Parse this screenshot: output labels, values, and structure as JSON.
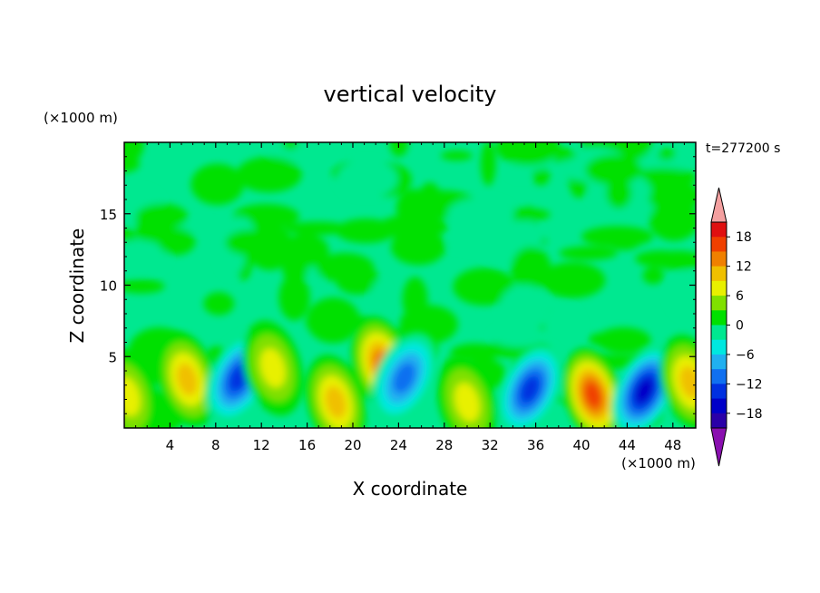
{
  "chart_data": {
    "type": "heatmap",
    "title": "vertical velocity",
    "xlabel": "X coordinate",
    "ylabel": "Z coordinate",
    "x_unit": "(×1000 m)",
    "y_unit": "(×1000 m)",
    "time_label": "t=277200 s",
    "xlim": [
      0,
      50
    ],
    "ylim": [
      0,
      20
    ],
    "x_ticks": [
      4,
      8,
      12,
      16,
      20,
      24,
      28,
      32,
      36,
      40,
      44,
      48
    ],
    "y_ticks": [
      5,
      10,
      15
    ],
    "colorbar": {
      "levels": [
        -21,
        -18,
        -15,
        -12,
        -9,
        -6,
        -3,
        0,
        3,
        6,
        9,
        12,
        15,
        18,
        21
      ],
      "tick_values": [
        18,
        12,
        6,
        0,
        -6,
        -12,
        -18
      ],
      "colors": [
        "#6a0dad",
        "#2a00a8",
        "#0000c8",
        "#0030e0",
        "#1070f0",
        "#20b0f0",
        "#00e8e0",
        "#00e890",
        "#00e000",
        "#80e000",
        "#e8f000",
        "#f0c000",
        "#f08000",
        "#f04000",
        "#e01010",
        "#f4a0a0"
      ],
      "over_color": "#f4a0a0",
      "under_color": "#8a10b0"
    },
    "features": [
      {
        "x": 0.3,
        "z": 2.2,
        "w": 6
      },
      {
        "x": 5.5,
        "z": 3.4,
        "w": 9
      },
      {
        "x": 10,
        "z": 3.5,
        "w": -10
      },
      {
        "x": 13,
        "z": 4.2,
        "w": 5
      },
      {
        "x": 18.5,
        "z": 1.8,
        "w": 7
      },
      {
        "x": 22.5,
        "z": 4.5,
        "w": 11
      },
      {
        "x": 24.5,
        "z": 3.5,
        "w": -7
      },
      {
        "x": 30,
        "z": 1.8,
        "w": 6
      },
      {
        "x": 35.5,
        "z": 2.7,
        "w": -10
      },
      {
        "x": 41,
        "z": 2.3,
        "w": 13
      },
      {
        "x": 45.5,
        "z": 2.6,
        "w": -15
      },
      {
        "x": 49.5,
        "z": 3.2,
        "w": 7
      }
    ]
  }
}
